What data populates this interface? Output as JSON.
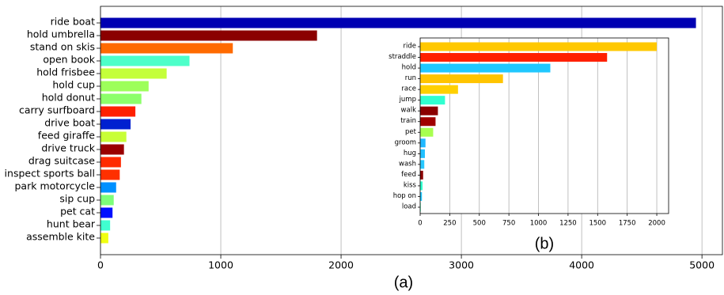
{
  "chart_data": [
    {
      "type": "barh",
      "label": "(a)",
      "categories": [
        "ride boat",
        "hold umbrella",
        "stand on skis",
        "open book",
        "hold frisbee",
        "hold cup",
        "hold donut",
        "carry surfboard",
        "drive boat",
        "feed giraffe",
        "drive truck",
        "drag suitcase",
        "inspect sports ball",
        "park motorcycle",
        "sip cup",
        "pet cat",
        "hunt bear",
        "assemble kite"
      ],
      "values": [
        4950,
        1800,
        1100,
        740,
        550,
        400,
        340,
        290,
        250,
        215,
        195,
        170,
        160,
        130,
        110,
        100,
        80,
        65
      ],
      "colors": [
        "#0000b2",
        "#8b0000",
        "#ff6a00",
        "#4dffc9",
        "#c4ff3a",
        "#9dff5a",
        "#8cff6a",
        "#ff2000",
        "#0020d0",
        "#c8ff36",
        "#9a0000",
        "#ff2a00",
        "#ff3000",
        "#0090ff",
        "#7dff7a",
        "#0010ff",
        "#40ffd0",
        "#f0ff10"
      ],
      "xlim": [
        0,
        5170
      ],
      "xticks": [
        0,
        1000,
        2000,
        3000,
        4000,
        5000
      ],
      "grid": true
    },
    {
      "type": "barh",
      "label": "(b)",
      "categories": [
        "ride",
        "straddle",
        "hold",
        "run",
        "race",
        "jump",
        "walk",
        "train",
        "pet",
        "groom",
        "hug",
        "wash",
        "feed",
        "kiss",
        "hop on",
        "load"
      ],
      "values": [
        2000,
        1580,
        1100,
        700,
        320,
        210,
        150,
        130,
        110,
        45,
        40,
        35,
        25,
        20,
        15,
        5
      ],
      "colors": [
        "#ffc800",
        "#ff2000",
        "#20c8ff",
        "#ffc400",
        "#ffd000",
        "#30ffd0",
        "#8b0000",
        "#a00000",
        "#a8ff50",
        "#20b8ff",
        "#20c0ff",
        "#28c8ff",
        "#8b0000",
        "#30ffd0",
        "#20c8ff",
        "#40ffb0"
      ],
      "xlim": [
        0,
        2100
      ],
      "xticks": [
        0,
        250,
        500,
        750,
        1000,
        1250,
        1500,
        1750,
        2000
      ],
      "grid": true
    }
  ]
}
